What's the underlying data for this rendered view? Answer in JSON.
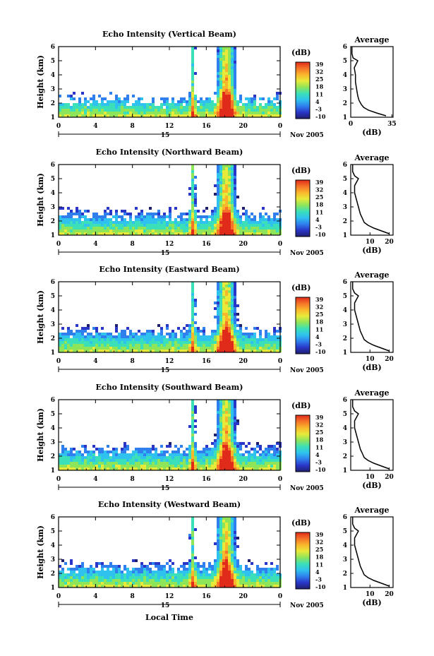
{
  "figure": {
    "xlabel": "Local Time",
    "date_label": "15",
    "month_label": "Nov 2005",
    "avg_title": "Average",
    "avg_xlabel": "(dB)",
    "colorbar_label": "(dB)",
    "colorbar_ticks": [
      "39",
      "32",
      "25",
      "18",
      "11",
      "4",
      "-3",
      "-10"
    ],
    "colorbar_colors": [
      "#1f1f70",
      "#2a36c8",
      "#2f80ee",
      "#2fc2ee",
      "#3be0b8",
      "#8fe55a",
      "#e8ea3a",
      "#f9b72c",
      "#f57428",
      "#e02a1a"
    ]
  },
  "chart_data": [
    {
      "type": "heatmap",
      "title": "Echo Intensity (Vertical Beam)",
      "xlabel": "",
      "ylabel": "Height (km)",
      "xlim": [
        0,
        24
      ],
      "ylim": [
        1,
        6
      ],
      "xticks": [
        "0",
        "4",
        "8",
        "12",
        "16",
        "20",
        "0"
      ],
      "yticks": [
        "1",
        "2",
        "3",
        "4",
        "5",
        "6"
      ],
      "colorbar": {
        "label": "(dB)",
        "range": [
          -10,
          39
        ]
      },
      "average_profile": {
        "title": "Average",
        "xlabel": "(dB)",
        "xlim": [
          0,
          36
        ],
        "xticks": [
          "0",
          "35"
        ],
        "x": [
          30,
          22,
          15,
          11,
          9,
          7,
          6,
          5,
          4,
          4,
          3,
          6,
          2,
          1,
          1
        ],
        "y": [
          1.1,
          1.3,
          1.5,
          1.7,
          1.9,
          2.2,
          2.5,
          3.0,
          3.5,
          4.0,
          4.5,
          5.0,
          5.2,
          5.5,
          6.0
        ]
      }
    },
    {
      "type": "heatmap",
      "title": "Echo Intensity (Northward Beam)",
      "xlabel": "",
      "ylabel": "Height (km)",
      "xlim": [
        0,
        24
      ],
      "ylim": [
        1,
        6
      ],
      "xticks": [
        "0",
        "4",
        "8",
        "12",
        "16",
        "20",
        "0"
      ],
      "yticks": [
        "1",
        "2",
        "3",
        "4",
        "5",
        "6"
      ],
      "colorbar": {
        "label": "(dB)",
        "range": [
          -10,
          39
        ]
      },
      "average_profile": {
        "title": "Average",
        "xlabel": "(dB)",
        "xlim": [
          0,
          22
        ],
        "xticks": [
          "10",
          "20"
        ],
        "x": [
          20,
          16,
          12,
          9,
          7,
          6,
          5,
          4,
          3,
          2,
          2,
          4,
          2,
          1,
          1
        ],
        "y": [
          1.1,
          1.3,
          1.5,
          1.7,
          1.9,
          2.2,
          2.5,
          3.0,
          3.5,
          4.0,
          4.5,
          5.0,
          5.2,
          5.5,
          6.0
        ]
      }
    },
    {
      "type": "heatmap",
      "title": "Echo Intensity (Eastward Beam)",
      "xlabel": "",
      "ylabel": "Height (km)",
      "xlim": [
        0,
        24
      ],
      "ylim": [
        1,
        6
      ],
      "xticks": [
        "0",
        "4",
        "8",
        "12",
        "16",
        "20",
        "0"
      ],
      "yticks": [
        "1",
        "2",
        "3",
        "4",
        "5",
        "6"
      ],
      "colorbar": {
        "label": "(dB)",
        "range": [
          -10,
          39
        ]
      },
      "average_profile": {
        "title": "Average",
        "xlabel": "(dB)",
        "xlim": [
          0,
          22
        ],
        "xticks": [
          "10",
          "20"
        ],
        "x": [
          20,
          16,
          12,
          9,
          7,
          6,
          5,
          4,
          3,
          2,
          2,
          4,
          2,
          1,
          1
        ],
        "y": [
          1.1,
          1.3,
          1.5,
          1.7,
          1.9,
          2.2,
          2.5,
          3.0,
          3.5,
          4.0,
          4.5,
          5.0,
          5.2,
          5.5,
          6.0
        ]
      }
    },
    {
      "type": "heatmap",
      "title": "Echo Intensity (Southward Beam)",
      "xlabel": "",
      "ylabel": "Height (km)",
      "xlim": [
        0,
        24
      ],
      "ylim": [
        1,
        6
      ],
      "xticks": [
        "0",
        "4",
        "8",
        "12",
        "16",
        "20",
        "0"
      ],
      "yticks": [
        "1",
        "2",
        "3",
        "4",
        "5",
        "6"
      ],
      "colorbar": {
        "label": "(dB)",
        "range": [
          -10,
          39
        ]
      },
      "average_profile": {
        "title": "Average",
        "xlabel": "(dB)",
        "xlim": [
          0,
          22
        ],
        "xticks": [
          "10",
          "20"
        ],
        "x": [
          20,
          16,
          12,
          9,
          7,
          6,
          5,
          4,
          3,
          2,
          2,
          4,
          2,
          1,
          1
        ],
        "y": [
          1.1,
          1.3,
          1.5,
          1.7,
          1.9,
          2.2,
          2.5,
          3.0,
          3.5,
          4.0,
          4.5,
          5.0,
          5.2,
          5.5,
          6.0
        ]
      }
    },
    {
      "type": "heatmap",
      "title": "Echo Intensity (Westward Beam)",
      "xlabel": "Local Time",
      "ylabel": "Height (km)",
      "xlim": [
        0,
        24
      ],
      "ylim": [
        1,
        6
      ],
      "xticks": [
        "0",
        "4",
        "8",
        "12",
        "16",
        "20",
        "0"
      ],
      "yticks": [
        "1",
        "2",
        "3",
        "4",
        "5",
        "6"
      ],
      "colorbar": {
        "label": "(dB)",
        "range": [
          -10,
          39
        ]
      },
      "average_profile": {
        "title": "Average",
        "xlabel": "(dB)",
        "xlim": [
          0,
          22
        ],
        "xticks": [
          "10",
          "20"
        ],
        "x": [
          20,
          16,
          12,
          9,
          7,
          6,
          5,
          4,
          3,
          2,
          2,
          4,
          2,
          1,
          1
        ],
        "y": [
          1.1,
          1.3,
          1.5,
          1.7,
          1.9,
          2.2,
          2.5,
          3.0,
          3.5,
          4.0,
          4.5,
          5.0,
          5.2,
          5.5,
          6.0
        ]
      }
    }
  ]
}
